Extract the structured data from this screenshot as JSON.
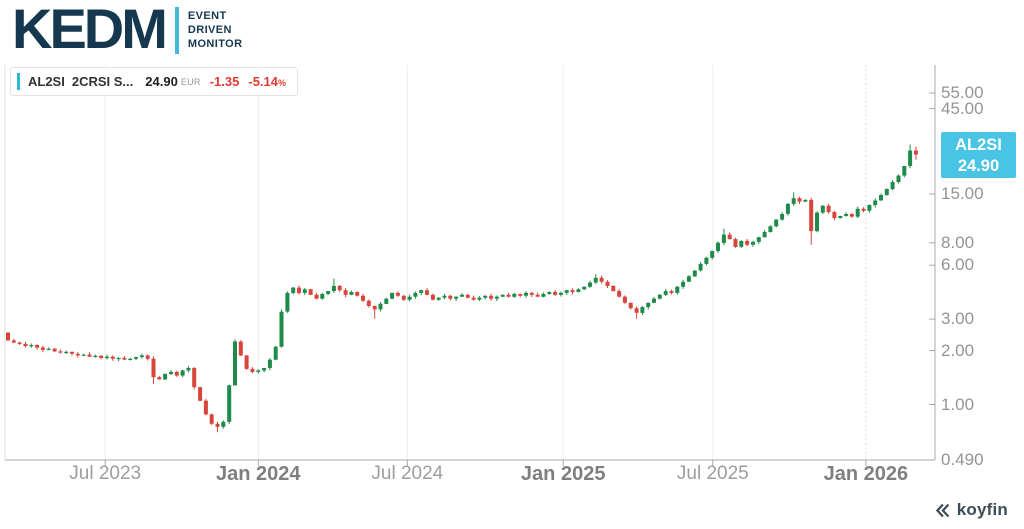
{
  "header": {
    "logo_text": "KEDM",
    "tagline_lines": [
      "EVENT",
      "DRIVEN",
      "MONITOR"
    ],
    "logo_color": "#16384f",
    "logo_accent_color": "#44b8da"
  },
  "legend": {
    "symbol": "AL2SI",
    "name": "2CRSI S...",
    "price": "24.90",
    "currency": "EUR",
    "change": "-1.35",
    "change_pct": "-5.14",
    "pct_sign": "%",
    "change_color": "#e03a33",
    "accent_color": "#2fb9d8"
  },
  "price_badge": {
    "symbol": "AL2SI",
    "price": "24.90",
    "bg_color": "#4ac4e4",
    "text_color": "#ffffff"
  },
  "footer": {
    "brand": "koyfin",
    "color": "#3d4c55"
  },
  "chart_data": {
    "type": "candlestick",
    "interval": "weekly",
    "scale": "log",
    "symbol": "AL2SI",
    "security": "2CRSI S...",
    "currency": "EUR",
    "last_price": 24.9,
    "change": -1.35,
    "change_pct": -5.14,
    "up_color": "#1f8b4a",
    "down_color": "#d8453a",
    "legend_position": "top-left",
    "grid": "vertical-only",
    "y_axis": {
      "side": "right",
      "ticks": [
        {
          "label": "55.00",
          "value": 55
        },
        {
          "label": "45.00",
          "value": 45
        },
        {
          "label": "15.00",
          "value": 15
        },
        {
          "label": "8.00",
          "value": 8
        },
        {
          "label": "6.00",
          "value": 6
        },
        {
          "label": "3.00",
          "value": 3
        },
        {
          "label": "2.00",
          "value": 2
        },
        {
          "label": "1.00",
          "value": 1
        },
        {
          "label": "0.490",
          "value": 0.49
        }
      ],
      "range": [
        0.49,
        55
      ]
    },
    "x_axis": {
      "ticks": [
        {
          "label": "Jul 2023",
          "week_index": 16.7,
          "bold": false,
          "dashed_gridline": false
        },
        {
          "label": "Jan 2024",
          "week_index": 43.0,
          "bold": true,
          "dashed_gridline": false
        },
        {
          "label": "Jul 2024",
          "week_index": 68.6,
          "bold": false,
          "dashed_gridline": false
        },
        {
          "label": "Jan 2025",
          "week_index": 95.4,
          "bold": true,
          "dashed_gridline": false
        },
        {
          "label": "Jul 2025",
          "week_index": 121.1,
          "bold": false,
          "dashed_gridline": false
        },
        {
          "label": "Jan 2026",
          "week_index": 147.4,
          "bold": true,
          "dashed_gridline": true
        }
      ]
    },
    "first_open": 2.52,
    "weekly_closes": [
      2.28,
      2.22,
      2.18,
      2.12,
      2.15,
      2.08,
      2.02,
      2.05,
      1.98,
      1.95,
      1.97,
      1.92,
      1.88,
      1.9,
      1.85,
      1.87,
      1.82,
      1.85,
      1.8,
      1.82,
      1.78,
      1.8,
      1.84,
      1.88,
      1.8,
      1.42,
      1.38,
      1.48,
      1.52,
      1.45,
      1.55,
      1.6,
      1.25,
      1.05,
      0.88,
      0.78,
      0.75,
      0.8,
      1.28,
      2.25,
      1.88,
      1.58,
      1.52,
      1.55,
      1.6,
      1.78,
      2.1,
      3.3,
      4.2,
      4.5,
      4.2,
      4.4,
      4.1,
      3.9,
      4.15,
      4.3,
      4.6,
      4.35,
      4.1,
      4.25,
      4.05,
      3.8,
      3.55,
      3.4,
      3.65,
      3.9,
      4.2,
      4.05,
      3.85,
      4.0,
      4.2,
      4.35,
      4.1,
      3.85,
      3.95,
      4.05,
      3.9,
      4.0,
      4.1,
      3.95,
      3.85,
      3.95,
      4.05,
      3.9,
      4.0,
      4.1,
      4.0,
      4.15,
      4.05,
      4.2,
      4.1,
      4.0,
      4.15,
      4.25,
      4.1,
      4.2,
      4.35,
      4.25,
      4.4,
      4.55,
      4.8,
      5.1,
      4.85,
      4.6,
      4.3,
      4.0,
      3.7,
      3.45,
      3.25,
      3.5,
      3.7,
      3.9,
      4.1,
      4.3,
      4.2,
      4.55,
      4.85,
      5.2,
      5.6,
      6.1,
      6.6,
      7.2,
      8.0,
      8.9,
      8.4,
      7.6,
      8.2,
      7.8,
      8.1,
      8.6,
      9.2,
      9.9,
      10.8,
      11.6,
      13.2,
      14.2,
      13.6,
      13.9,
      9.3,
      11.8,
      12.9,
      11.9,
      11.0,
      11.3,
      11.6,
      11.2,
      12.4,
      12.1,
      13.0,
      13.8,
      14.8,
      16.0,
      17.5,
      19.0,
      21.5,
      26.25,
      24.9
    ],
    "wick_overrides": {
      "25": {
        "low": 1.3
      },
      "36": {
        "low": 0.7
      },
      "56": {
        "high": 5.05
      },
      "63": {
        "low": 3.02
      },
      "101": {
        "high": 5.35
      },
      "108": {
        "low": 3.02
      },
      "123": {
        "high": 9.6
      },
      "135": {
        "high": 15.3
      },
      "138": {
        "low": 7.8
      },
      "155": {
        "high": 28.4
      },
      "156": {
        "high": 27.6,
        "low": 23.3
      }
    }
  }
}
